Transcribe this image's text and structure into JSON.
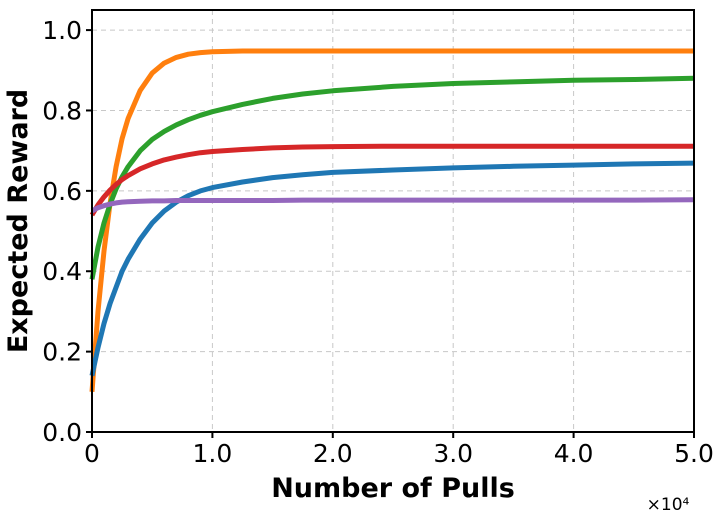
{
  "chart_data": {
    "type": "line",
    "title": "",
    "xlabel": "Number of Pulls",
    "ylabel": "Expected Reward",
    "x_scale_label": "×10⁴",
    "x_scale": 10000,
    "xlim": [
      0,
      50000
    ],
    "ylim": [
      0,
      1.05
    ],
    "x_ticks": [
      0,
      10000,
      20000,
      30000,
      40000,
      50000
    ],
    "x_tick_labels": [
      "0",
      "1.0",
      "2.0",
      "3.0",
      "4.0",
      "5.0"
    ],
    "y_ticks": [
      0,
      0.2,
      0.4,
      0.6,
      0.8,
      1.0
    ],
    "y_tick_labels": [
      "0.0",
      "0.2",
      "0.4",
      "0.6",
      "0.8",
      "1.0"
    ],
    "grid": true,
    "legend": "none",
    "x": [
      0,
      500,
      1000,
      1500,
      2000,
      2500,
      3000,
      4000,
      5000,
      6000,
      7000,
      8000,
      9000,
      10000,
      12500,
      15000,
      17500,
      20000,
      25000,
      30000,
      35000,
      40000,
      45000,
      50000
    ],
    "series": [
      {
        "color": "#ff7f0e",
        "values": [
          0.1,
          0.3,
          0.45,
          0.57,
          0.66,
          0.73,
          0.78,
          0.85,
          0.893,
          0.918,
          0.932,
          0.94,
          0.944,
          0.946,
          0.948,
          0.948,
          0.948,
          0.948,
          0.948,
          0.948,
          0.948,
          0.948,
          0.948,
          0.948
        ]
      },
      {
        "color": "#2ca02c",
        "values": [
          0.38,
          0.46,
          0.52,
          0.567,
          0.605,
          0.635,
          0.66,
          0.7,
          0.728,
          0.748,
          0.764,
          0.777,
          0.788,
          0.797,
          0.815,
          0.83,
          0.841,
          0.849,
          0.86,
          0.867,
          0.871,
          0.875,
          0.877,
          0.88
        ]
      },
      {
        "color": "#d62728",
        "values": [
          0.54,
          0.565,
          0.585,
          0.602,
          0.616,
          0.628,
          0.638,
          0.655,
          0.667,
          0.677,
          0.684,
          0.69,
          0.695,
          0.698,
          0.703,
          0.707,
          0.709,
          0.71,
          0.711,
          0.711,
          0.711,
          0.711,
          0.711,
          0.711
        ]
      },
      {
        "color": "#1f77b4",
        "values": [
          0.14,
          0.21,
          0.27,
          0.32,
          0.36,
          0.4,
          0.43,
          0.48,
          0.52,
          0.55,
          0.572,
          0.588,
          0.6,
          0.608,
          0.622,
          0.633,
          0.64,
          0.646,
          0.652,
          0.657,
          0.661,
          0.664,
          0.667,
          0.669
        ]
      },
      {
        "color": "#9467bd",
        "values": [
          0.55,
          0.558,
          0.563,
          0.567,
          0.57,
          0.572,
          0.573,
          0.574,
          0.575,
          0.575,
          0.576,
          0.576,
          0.576,
          0.576,
          0.576,
          0.576,
          0.577,
          0.577,
          0.577,
          0.577,
          0.577,
          0.577,
          0.577,
          0.578
        ]
      }
    ]
  }
}
